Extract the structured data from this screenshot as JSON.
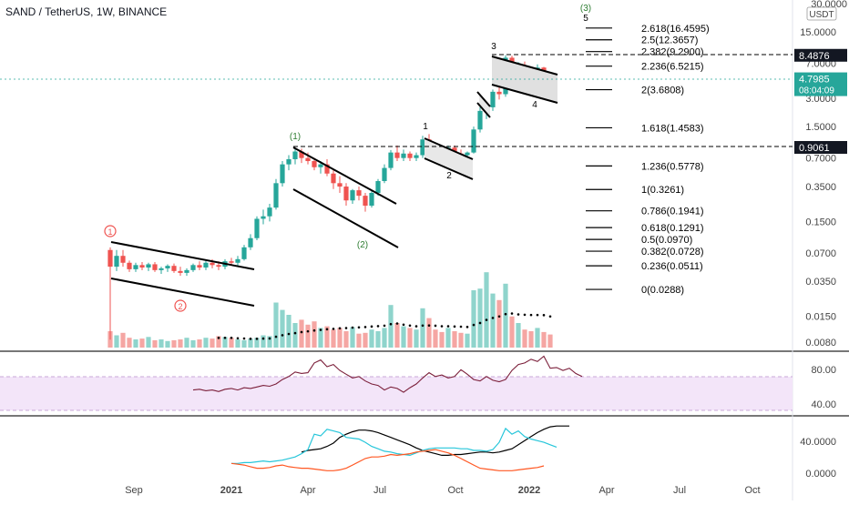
{
  "header": {
    "title": "SAND / TetherUS, 1W, BINANCE",
    "top_wave_label": "(3)",
    "top_wave_sub": "5"
  },
  "price_axis": {
    "currency": "USDT",
    "top_partial": "30.0000",
    "ticks": [
      "15.0000",
      "7.0000",
      "3.0000",
      "1.5000",
      "0.7000",
      "0.3500",
      "0.1500",
      "0.0700",
      "0.0350",
      "0.0150",
      "0.0080"
    ],
    "markers": [
      {
        "label": "8.4876",
        "style": "dark"
      },
      {
        "label": "4.7985",
        "sub": "08:04:09",
        "style": "teal"
      },
      {
        "label": "0.9061",
        "style": "dark"
      }
    ]
  },
  "rsi_axis": [
    "80.00",
    "40.00"
  ],
  "osc_axis": [
    "40.0000",
    "0.0000"
  ],
  "time_axis": [
    "Sep",
    "2021",
    "Apr",
    "Jul",
    "Oct",
    "2022",
    "Apr",
    "Jul",
    "Oct"
  ],
  "fib_levels": [
    {
      "label": "2.618(16.4595)"
    },
    {
      "label": "2.5(12.3657)"
    },
    {
      "label": "2.382(9.2900)"
    },
    {
      "label": "2.236(6.5215)"
    },
    {
      "label": "2(3.6808)"
    },
    {
      "label": "1.618(1.4583)"
    },
    {
      "label": "1.236(0.5778)"
    },
    {
      "label": "1(0.3261)"
    },
    {
      "label": "0.786(0.1941)"
    },
    {
      "label": "0.618(0.1291)"
    },
    {
      "label": "0.5(0.0970)"
    },
    {
      "label": "0.382(0.0728)"
    },
    {
      "label": "0.236(0.0511)"
    },
    {
      "label": "0(0.0288)"
    }
  ],
  "wave_labels": {
    "circle1": "1",
    "circle2": "2",
    "paren1": "(1)",
    "paren2": "(2)",
    "w1": "1",
    "w2": "2",
    "w3": "3",
    "w4": "4"
  },
  "colors": {
    "up": "#26a69a",
    "down": "#ef5350",
    "rsi": "#7b1f3a",
    "rsi_band": "#f3e5f9",
    "osc_black": "#000000",
    "osc_blue": "#2196f3",
    "osc_orange": "#ff5722",
    "osc_teal": "#26c6da"
  },
  "chart_data": {
    "type": "candlestick",
    "symbol": "SAND / TetherUS",
    "interval": "1W",
    "exchange": "BINANCE",
    "yscale": "log",
    "candles": [
      {
        "o": 0.075,
        "h": 0.08,
        "l": 0.0085,
        "c": 0.05
      },
      {
        "o": 0.05,
        "h": 0.075,
        "l": 0.045,
        "c": 0.065
      },
      {
        "o": 0.065,
        "h": 0.075,
        "l": 0.05,
        "c": 0.055
      },
      {
        "o": 0.055,
        "h": 0.058,
        "l": 0.044,
        "c": 0.047
      },
      {
        "o": 0.047,
        "h": 0.055,
        "l": 0.044,
        "c": 0.052
      },
      {
        "o": 0.052,
        "h": 0.056,
        "l": 0.046,
        "c": 0.049
      },
      {
        "o": 0.049,
        "h": 0.055,
        "l": 0.045,
        "c": 0.053
      },
      {
        "o": 0.053,
        "h": 0.056,
        "l": 0.044,
        "c": 0.046
      },
      {
        "o": 0.046,
        "h": 0.05,
        "l": 0.042,
        "c": 0.048
      },
      {
        "o": 0.048,
        "h": 0.053,
        "l": 0.044,
        "c": 0.051
      },
      {
        "o": 0.051,
        "h": 0.054,
        "l": 0.043,
        "c": 0.045
      },
      {
        "o": 0.045,
        "h": 0.05,
        "l": 0.04,
        "c": 0.043
      },
      {
        "o": 0.043,
        "h": 0.048,
        "l": 0.04,
        "c": 0.046
      },
      {
        "o": 0.046,
        "h": 0.054,
        "l": 0.044,
        "c": 0.052
      },
      {
        "o": 0.052,
        "h": 0.057,
        "l": 0.046,
        "c": 0.049
      },
      {
        "o": 0.049,
        "h": 0.058,
        "l": 0.046,
        "c": 0.055
      },
      {
        "o": 0.055,
        "h": 0.06,
        "l": 0.048,
        "c": 0.052
      },
      {
        "o": 0.052,
        "h": 0.057,
        "l": 0.046,
        "c": 0.05
      },
      {
        "o": 0.05,
        "h": 0.06,
        "l": 0.047,
        "c": 0.057
      },
      {
        "o": 0.057,
        "h": 0.062,
        "l": 0.052,
        "c": 0.055
      },
      {
        "o": 0.055,
        "h": 0.065,
        "l": 0.05,
        "c": 0.06
      },
      {
        "o": 0.06,
        "h": 0.085,
        "l": 0.058,
        "c": 0.08
      },
      {
        "o": 0.08,
        "h": 0.11,
        "l": 0.075,
        "c": 0.1
      },
      {
        "o": 0.1,
        "h": 0.17,
        "l": 0.095,
        "c": 0.16
      },
      {
        "o": 0.16,
        "h": 0.2,
        "l": 0.14,
        "c": 0.17
      },
      {
        "o": 0.17,
        "h": 0.23,
        "l": 0.15,
        "c": 0.21
      },
      {
        "o": 0.21,
        "h": 0.42,
        "l": 0.2,
        "c": 0.38
      },
      {
        "o": 0.38,
        "h": 0.65,
        "l": 0.35,
        "c": 0.6
      },
      {
        "o": 0.6,
        "h": 0.75,
        "l": 0.52,
        "c": 0.68
      },
      {
        "o": 0.68,
        "h": 0.88,
        "l": 0.6,
        "c": 0.82
      },
      {
        "o": 0.82,
        "h": 0.88,
        "l": 0.62,
        "c": 0.7
      },
      {
        "o": 0.7,
        "h": 0.8,
        "l": 0.6,
        "c": 0.65
      },
      {
        "o": 0.65,
        "h": 0.7,
        "l": 0.52,
        "c": 0.56
      },
      {
        "o": 0.56,
        "h": 0.65,
        "l": 0.48,
        "c": 0.6
      },
      {
        "o": 0.6,
        "h": 0.68,
        "l": 0.45,
        "c": 0.48
      },
      {
        "o": 0.48,
        "h": 0.52,
        "l": 0.33,
        "c": 0.38
      },
      {
        "o": 0.38,
        "h": 0.45,
        "l": 0.3,
        "c": 0.35
      },
      {
        "o": 0.35,
        "h": 0.38,
        "l": 0.22,
        "c": 0.25
      },
      {
        "o": 0.25,
        "h": 0.33,
        "l": 0.23,
        "c": 0.32
      },
      {
        "o": 0.32,
        "h": 0.35,
        "l": 0.25,
        "c": 0.28
      },
      {
        "o": 0.28,
        "h": 0.3,
        "l": 0.19,
        "c": 0.22
      },
      {
        "o": 0.22,
        "h": 0.32,
        "l": 0.21,
        "c": 0.3
      },
      {
        "o": 0.3,
        "h": 0.42,
        "l": 0.28,
        "c": 0.4
      },
      {
        "o": 0.4,
        "h": 0.6,
        "l": 0.38,
        "c": 0.55
      },
      {
        "o": 0.55,
        "h": 0.85,
        "l": 0.52,
        "c": 0.8
      },
      {
        "o": 0.8,
        "h": 0.95,
        "l": 0.65,
        "c": 0.7
      },
      {
        "o": 0.7,
        "h": 0.86,
        "l": 0.65,
        "c": 0.78
      },
      {
        "o": 0.78,
        "h": 0.82,
        "l": 0.65,
        "c": 0.7
      },
      {
        "o": 0.7,
        "h": 0.8,
        "l": 0.65,
        "c": 0.75
      },
      {
        "o": 0.75,
        "h": 1.2,
        "l": 0.7,
        "c": 1.1
      },
      {
        "o": 1.1,
        "h": 1.25,
        "l": 0.85,
        "c": 0.9
      },
      {
        "o": 0.9,
        "h": 0.95,
        "l": 0.68,
        "c": 0.75
      },
      {
        "o": 0.75,
        "h": 0.8,
        "l": 0.65,
        "c": 0.7
      },
      {
        "o": 0.7,
        "h": 0.95,
        "l": 0.68,
        "c": 0.9
      },
      {
        "o": 0.9,
        "h": 0.95,
        "l": 0.72,
        "c": 0.78
      },
      {
        "o": 0.78,
        "h": 0.86,
        "l": 0.7,
        "c": 0.75
      },
      {
        "o": 0.75,
        "h": 0.82,
        "l": 0.65,
        "c": 0.8
      },
      {
        "o": 0.8,
        "h": 1.5,
        "l": 0.78,
        "c": 1.4
      },
      {
        "o": 1.4,
        "h": 2.4,
        "l": 1.3,
        "c": 2.2
      },
      {
        "o": 2.2,
        "h": 2.6,
        "l": 1.8,
        "c": 2.4
      },
      {
        "o": 2.4,
        "h": 3.7,
        "l": 2.2,
        "c": 3.5
      },
      {
        "o": 3.5,
        "h": 4.5,
        "l": 2.9,
        "c": 3.3
      },
      {
        "o": 3.3,
        "h": 8.487,
        "l": 3.1,
        "c": 8.0
      },
      {
        "o": 8.0,
        "h": 8.4,
        "l": 4.5,
        "c": 5.0
      },
      {
        "o": 5.0,
        "h": 7.2,
        "l": 4.8,
        "c": 6.5
      },
      {
        "o": 6.5,
        "h": 7.3,
        "l": 5.5,
        "c": 5.8
      },
      {
        "o": 5.8,
        "h": 6.2,
        "l": 4.6,
        "c": 5.3
      },
      {
        "o": 5.3,
        "h": 6.8,
        "l": 5.0,
        "c": 6.3
      },
      {
        "o": 6.3,
        "h": 6.4,
        "l": 4.8,
        "c": 5.0
      },
      {
        "o": 5.0,
        "h": 5.4,
        "l": 4.3,
        "c": 4.8
      }
    ],
    "volume": [
      0.2,
      0.15,
      0.18,
      0.12,
      0.1,
      0.11,
      0.13,
      0.09,
      0.1,
      0.08,
      0.09,
      0.1,
      0.12,
      0.09,
      0.1,
      0.12,
      0.11,
      0.14,
      0.13,
      0.12,
      0.1,
      0.09,
      0.11,
      0.12,
      0.15,
      0.14,
      0.55,
      0.46,
      0.4,
      0.3,
      0.34,
      0.28,
      0.32,
      0.24,
      0.26,
      0.22,
      0.24,
      0.2,
      0.25,
      0.17,
      0.18,
      0.22,
      0.2,
      0.24,
      0.52,
      0.3,
      0.26,
      0.24,
      0.22,
      0.48,
      0.36,
      0.22,
      0.19,
      0.24,
      0.2,
      0.18,
      0.17,
      0.7,
      0.72,
      0.92,
      0.66,
      0.58,
      0.78,
      0.38,
      0.3,
      0.22,
      0.2,
      0.24,
      0.19,
      0.16
    ],
    "rsi_range": [
      20,
      100
    ],
    "rsi": [
      null,
      null,
      null,
      null,
      null,
      null,
      null,
      null,
      null,
      null,
      null,
      null,
      null,
      null,
      null,
      null,
      null,
      null,
      null,
      null,
      null,
      null,
      null,
      null,
      null,
      null,
      null,
      null,
      null,
      null,
      null,
      null,
      null,
      null,
      null,
      null,
      null,
      null,
      null,
      null,
      null,
      null,
      null,
      null,
      null,
      null,
      null,
      null,
      null,
      null,
      null,
      null,
      null,
      null,
      null,
      null,
      null,
      null,
      null,
      null,
      null,
      null,
      null,
      null,
      null,
      null,
      null,
      null,
      null,
      null
    ],
    "rsi_series": [
      {
        "i": 7,
        "v": 52
      },
      {
        "i": 8,
        "v": 53
      },
      {
        "i": 9,
        "v": 51
      },
      {
        "i": 10,
        "v": 52
      },
      {
        "i": 11,
        "v": 50
      },
      {
        "i": 12,
        "v": 53
      },
      {
        "i": 13,
        "v": 54
      },
      {
        "i": 14,
        "v": 52
      },
      {
        "i": 15,
        "v": 55
      },
      {
        "i": 16,
        "v": 54
      },
      {
        "i": 17,
        "v": 56
      },
      {
        "i": 18,
        "v": 58
      },
      {
        "i": 19,
        "v": 57
      },
      {
        "i": 20,
        "v": 60
      },
      {
        "i": 21,
        "v": 66
      },
      {
        "i": 22,
        "v": 70
      },
      {
        "i": 23,
        "v": 76
      },
      {
        "i": 24,
        "v": 74
      },
      {
        "i": 25,
        "v": 75
      },
      {
        "i": 26,
        "v": 88
      },
      {
        "i": 27,
        "v": 92
      },
      {
        "i": 28,
        "v": 83
      },
      {
        "i": 29,
        "v": 86
      },
      {
        "i": 30,
        "v": 78
      },
      {
        "i": 31,
        "v": 73
      },
      {
        "i": 32,
        "v": 68
      },
      {
        "i": 33,
        "v": 70
      },
      {
        "i": 34,
        "v": 64
      },
      {
        "i": 35,
        "v": 60
      },
      {
        "i": 36,
        "v": 58
      },
      {
        "i": 37,
        "v": 52
      },
      {
        "i": 38,
        "v": 56
      },
      {
        "i": 39,
        "v": 54
      },
      {
        "i": 40,
        "v": 49
      },
      {
        "i": 41,
        "v": 55
      },
      {
        "i": 42,
        "v": 60
      },
      {
        "i": 43,
        "v": 68
      },
      {
        "i": 44,
        "v": 75
      },
      {
        "i": 45,
        "v": 70
      },
      {
        "i": 46,
        "v": 72
      },
      {
        "i": 47,
        "v": 68
      },
      {
        "i": 48,
        "v": 70
      },
      {
        "i": 49,
        "v": 79
      },
      {
        "i": 50,
        "v": 73
      },
      {
        "i": 51,
        "v": 66
      },
      {
        "i": 52,
        "v": 64
      },
      {
        "i": 53,
        "v": 70
      },
      {
        "i": 54,
        "v": 65
      },
      {
        "i": 55,
        "v": 63
      },
      {
        "i": 56,
        "v": 66
      },
      {
        "i": 57,
        "v": 78
      },
      {
        "i": 58,
        "v": 86
      },
      {
        "i": 59,
        "v": 88
      },
      {
        "i": 60,
        "v": 93
      },
      {
        "i": 61,
        "v": 90
      },
      {
        "i": 62,
        "v": 97
      },
      {
        "i": 63,
        "v": 81
      },
      {
        "i": 64,
        "v": 82
      },
      {
        "i": 65,
        "v": 78
      },
      {
        "i": 66,
        "v": 81
      },
      {
        "i": 67,
        "v": 74
      },
      {
        "i": 68,
        "v": 70
      }
    ],
    "osc_range": [
      0,
      65
    ],
    "osc_series": [
      {
        "name": "",
        "color": "black",
        "start": 24,
        "values": [
          26,
          28,
          29,
          30,
          33,
          37,
          44,
          48,
          51,
          53,
          53,
          52,
          50,
          47,
          44,
          41,
          38,
          35,
          31,
          28,
          26,
          24,
          22,
          22,
          23,
          23,
          24,
          25,
          26,
          26,
          25,
          26,
          28,
          30,
          35,
          40,
          45,
          50,
          54,
          57,
          58,
          58,
          58
        ]
      },
      {
        "name": "",
        "color": "blue",
        "start": 13,
        "values": [
          12,
          12,
          13,
          13,
          14,
          15,
          14,
          15,
          16,
          18,
          20,
          24,
          29,
          48,
          46,
          54,
          52,
          50,
          44,
          43,
          42,
          38,
          33,
          30,
          27,
          26,
          24,
          23,
          22,
          25,
          28,
          30,
          31,
          31,
          31,
          31,
          30,
          30,
          28,
          28,
          27,
          29,
          38,
          55,
          48,
          52,
          45,
          42,
          40,
          38,
          35,
          32
        ]
      },
      {
        "name": "",
        "color": "orange",
        "start": 13,
        "values": [
          12,
          11,
          10,
          8,
          6,
          6,
          7,
          9,
          10,
          8,
          7,
          6,
          6,
          5,
          4,
          3,
          3,
          4,
          6,
          10,
          14,
          18,
          20,
          20,
          21,
          23,
          22,
          23,
          24,
          26,
          27,
          28,
          29,
          27,
          25,
          22,
          18,
          14,
          10,
          6,
          5,
          4,
          3,
          3,
          3,
          4,
          5,
          6,
          7,
          9
        ]
      }
    ]
  }
}
